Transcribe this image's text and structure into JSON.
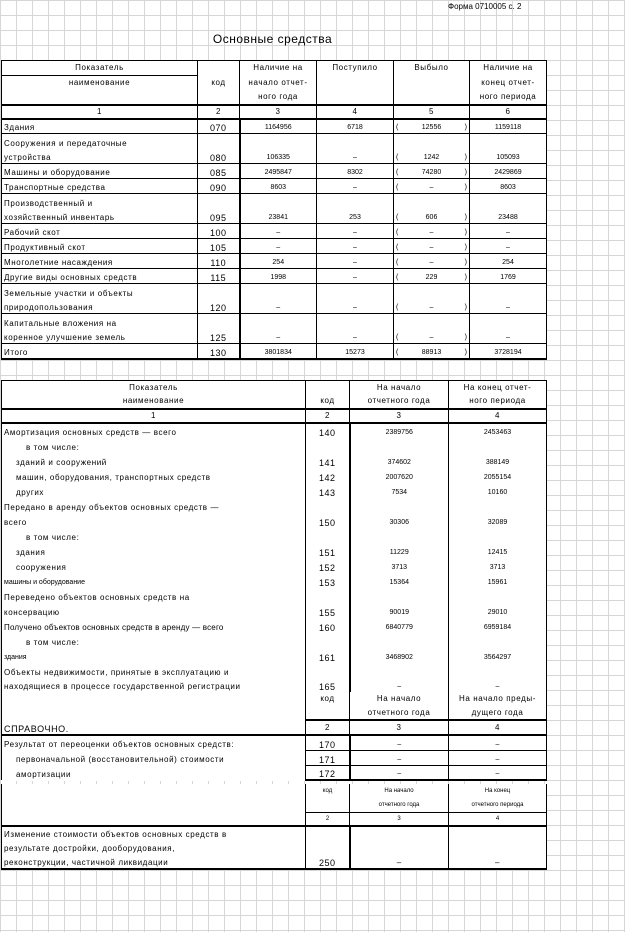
{
  "form_code": "Форма 0710005 с. 2",
  "title": "Основные средства",
  "t1": {
    "head": {
      "indicator": "Показатель",
      "name": "наименование",
      "code": "код",
      "start_l1": "Наличие на",
      "start_l2": "начало отчет-",
      "start_l3": "ного года",
      "received": "Поступило",
      "disposed": "Выбыло",
      "end_l1": "Наличие на",
      "end_l2": "конец отчет-",
      "end_l3": "ного периода",
      "n1": "1",
      "n2": "2",
      "n3": "3",
      "n4": "4",
      "n5": "5",
      "n6": "6"
    },
    "rows": [
      {
        "l1": "Здания",
        "l2": "",
        "code": "070",
        "start": "1164956",
        "in": "6718",
        "out": "12556",
        "end": "1159118"
      },
      {
        "l1": "Сооружения и передаточные",
        "l2": "устройства",
        "code": "080",
        "start": "106335",
        "in": "–",
        "out": "1242",
        "end": "105093"
      },
      {
        "l1": "Машины и оборудование",
        "l2": "",
        "code": "085",
        "start": "2495847",
        "in": "8302",
        "out": "74280",
        "end": "2429869"
      },
      {
        "l1": "Транспортные средства",
        "l2": "",
        "code": "090",
        "start": "8603",
        "in": "–",
        "out": "–",
        "end": "8603"
      },
      {
        "l1": "Производственный и",
        "l2": "хозяйственный инвентарь",
        "code": "095",
        "start": "23841",
        "in": "253",
        "out": "606",
        "end": "23488"
      },
      {
        "l1": "Рабочий скот",
        "l2": "",
        "code": "100",
        "start": "–",
        "in": "–",
        "out": "–",
        "end": "–"
      },
      {
        "l1": "Продуктивный скот",
        "l2": "",
        "code": "105",
        "start": "–",
        "in": "–",
        "out": "–",
        "end": "–"
      },
      {
        "l1": "Многолетние насаждения",
        "l2": "",
        "code": "110",
        "start": "254",
        "in": "–",
        "out": "–",
        "end": "254"
      },
      {
        "l1": "Другие виды основных средств",
        "l2": "",
        "code": "115",
        "start": "1998",
        "in": "–",
        "out": "229",
        "end": "1769"
      },
      {
        "l1": "Земельные участки и объекты",
        "l2": "природопользования",
        "code": "120",
        "start": "–",
        "in": "–",
        "out": "–",
        "end": "–"
      },
      {
        "l1": "Капитальные вложения на",
        "l2": "коренное улучшение земель",
        "code": "125",
        "start": "–",
        "in": "–",
        "out": "–",
        "end": "–"
      },
      {
        "l1": "Итого",
        "l2": "",
        "code": "130",
        "start": "3801834",
        "in": "15273",
        "out": "88913",
        "end": "3728194"
      }
    ]
  },
  "t2": {
    "head": {
      "indicator": "Показатель",
      "name": "наименование",
      "code": "код",
      "start_l1": "На начало",
      "start_l2": "отчетного года",
      "end_l1": "На конец отчет-",
      "end_l2": "ного периода",
      "n1": "1",
      "n2": "2",
      "n3": "3",
      "n4": "4"
    },
    "rows": [
      {
        "label": "Амортизация основных средств — всего",
        "code": "140",
        "start": "2389756",
        "end": "2453463"
      },
      {
        "label": "в том числе:",
        "code": "",
        "start": "",
        "end": ""
      },
      {
        "label": "зданий и сооружений",
        "code": "141",
        "start": "374602",
        "end": "388149"
      },
      {
        "label": "машин, оборудования, транспортных средств",
        "code": "142",
        "start": "2007620",
        "end": "2055154"
      },
      {
        "label": "других",
        "code": "143",
        "start": "7534",
        "end": "10160"
      },
      {
        "label": "Передано в аренду объектов основных средств —",
        "code": "",
        "start": "",
        "end": ""
      },
      {
        "label": "всего",
        "code": "150",
        "start": "30306",
        "end": "32089"
      },
      {
        "label": "в том числе:",
        "code": "",
        "start": "",
        "end": ""
      },
      {
        "label": "здания",
        "code": "151",
        "start": "11229",
        "end": "12415"
      },
      {
        "label": "сооружения",
        "code": "152",
        "start": "3713",
        "end": "3713"
      },
      {
        "label": "машины и оборудование",
        "code": "153",
        "start": "15364",
        "end": "15961"
      },
      {
        "label": "Переведено объектов основных средств на",
        "code": "",
        "start": "",
        "end": ""
      },
      {
        "label": "консервацию",
        "code": "155",
        "start": "90019",
        "end": "29010"
      },
      {
        "label": "Получено объектов основных средств в аренду — всего",
        "code": "160",
        "start": "6840779",
        "end": "6959184"
      },
      {
        "label": "в том числе:",
        "code": "",
        "start": "",
        "end": ""
      },
      {
        "label": "здания",
        "code": "161",
        "start": "3468902",
        "end": "3564297"
      },
      {
        "label": "Объекты недвижимости, принятые в эксплуатацию и",
        "code": "",
        "start": "",
        "end": ""
      },
      {
        "label": "находящиеся в процессе государственной регистрации",
        "code": "165",
        "start": "–",
        "end": "–"
      }
    ]
  },
  "t3": {
    "code": "код",
    "start_l1": "На начало",
    "start_l2": "отчетного года",
    "end_l1": "На начало преды-",
    "end_l2": "дущего года",
    "n2": "2",
    "n3": "3",
    "n4": "4",
    "ref_title": "СПРАВОЧНО.",
    "rows": [
      {
        "label": "Результат от переоценки объектов основных средств:",
        "code": "170",
        "start": "–",
        "end": "–"
      },
      {
        "label": "первоначальной (восстановительной) стоимости",
        "code": "171",
        "start": "–",
        "end": "–"
      },
      {
        "label": "амортизации",
        "code": "172",
        "start": "–",
        "end": "–"
      }
    ]
  },
  "t4": {
    "code": "код",
    "start_l1": "На начало",
    "start_l2": "отчетного года",
    "end_l1": "На конец",
    "end_l2": "отчетного периода",
    "n2": "2",
    "n3": "3",
    "n4": "4",
    "l1": "Изменение стоимости объектов основных средств в",
    "l2": "результате достройки, дооборудования,",
    "l3": "реконструкции, частичной ликвидации",
    "row_code": "250",
    "row_start": "–",
    "row_end": "–"
  }
}
